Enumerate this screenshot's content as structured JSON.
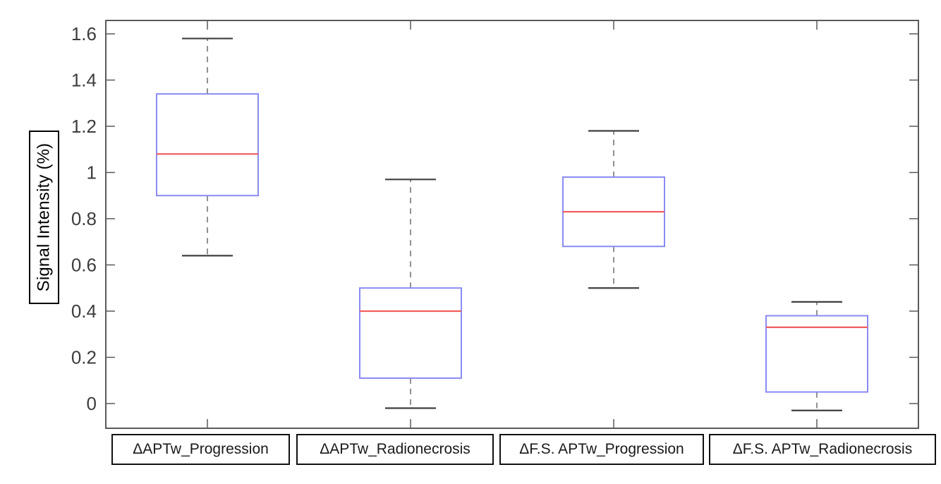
{
  "chart_data": {
    "type": "boxplot",
    "title": "",
    "xlabel": "",
    "ylabel": "Signal Intensity (%)",
    "categories": [
      "ΔAPTw_Progression",
      "ΔAPTw_Radionecrosis",
      "ΔF.S. APTw_Progression",
      "ΔF.S. APTw_Radionecrosis"
    ],
    "series": [
      {
        "name": "ΔAPTw_Progression",
        "whisker_low": 0.64,
        "q1": 0.9,
        "median": 1.08,
        "q3": 1.34,
        "whisker_high": 1.58
      },
      {
        "name": "ΔAPTw_Radionecrosis",
        "whisker_low": -0.02,
        "q1": 0.11,
        "median": 0.4,
        "q3": 0.5,
        "whisker_high": 0.97
      },
      {
        "name": "ΔF.S. APTw_Progression",
        "whisker_low": 0.5,
        "q1": 0.68,
        "median": 0.83,
        "q3": 0.98,
        "whisker_high": 1.18
      },
      {
        "name": "ΔF.S. APTw_Radionecrosis",
        "whisker_low": -0.03,
        "q1": 0.05,
        "median": 0.33,
        "q3": 0.38,
        "whisker_high": 0.44
      }
    ],
    "ylim": [
      -0.107,
      1.658
    ],
    "yticks": [
      0,
      0.2,
      0.4,
      0.6,
      0.8,
      1,
      1.2,
      1.4,
      1.6
    ],
    "ytick_labels": [
      "0",
      "0.2",
      "0.4",
      "0.6",
      "0.8",
      "1",
      "1.2",
      "1.4",
      "1.6"
    ],
    "grid": false,
    "legend_visible": false,
    "colors": {
      "box_edge": "#8a8af3",
      "median": "#f25f5f",
      "whisker": "#858585",
      "whisker_cap": "#3f3f3f",
      "axis": "#5a5a5a",
      "tick_label": "#3d3d3d",
      "label_box_border": "#111111",
      "background": "#ffffff"
    }
  }
}
